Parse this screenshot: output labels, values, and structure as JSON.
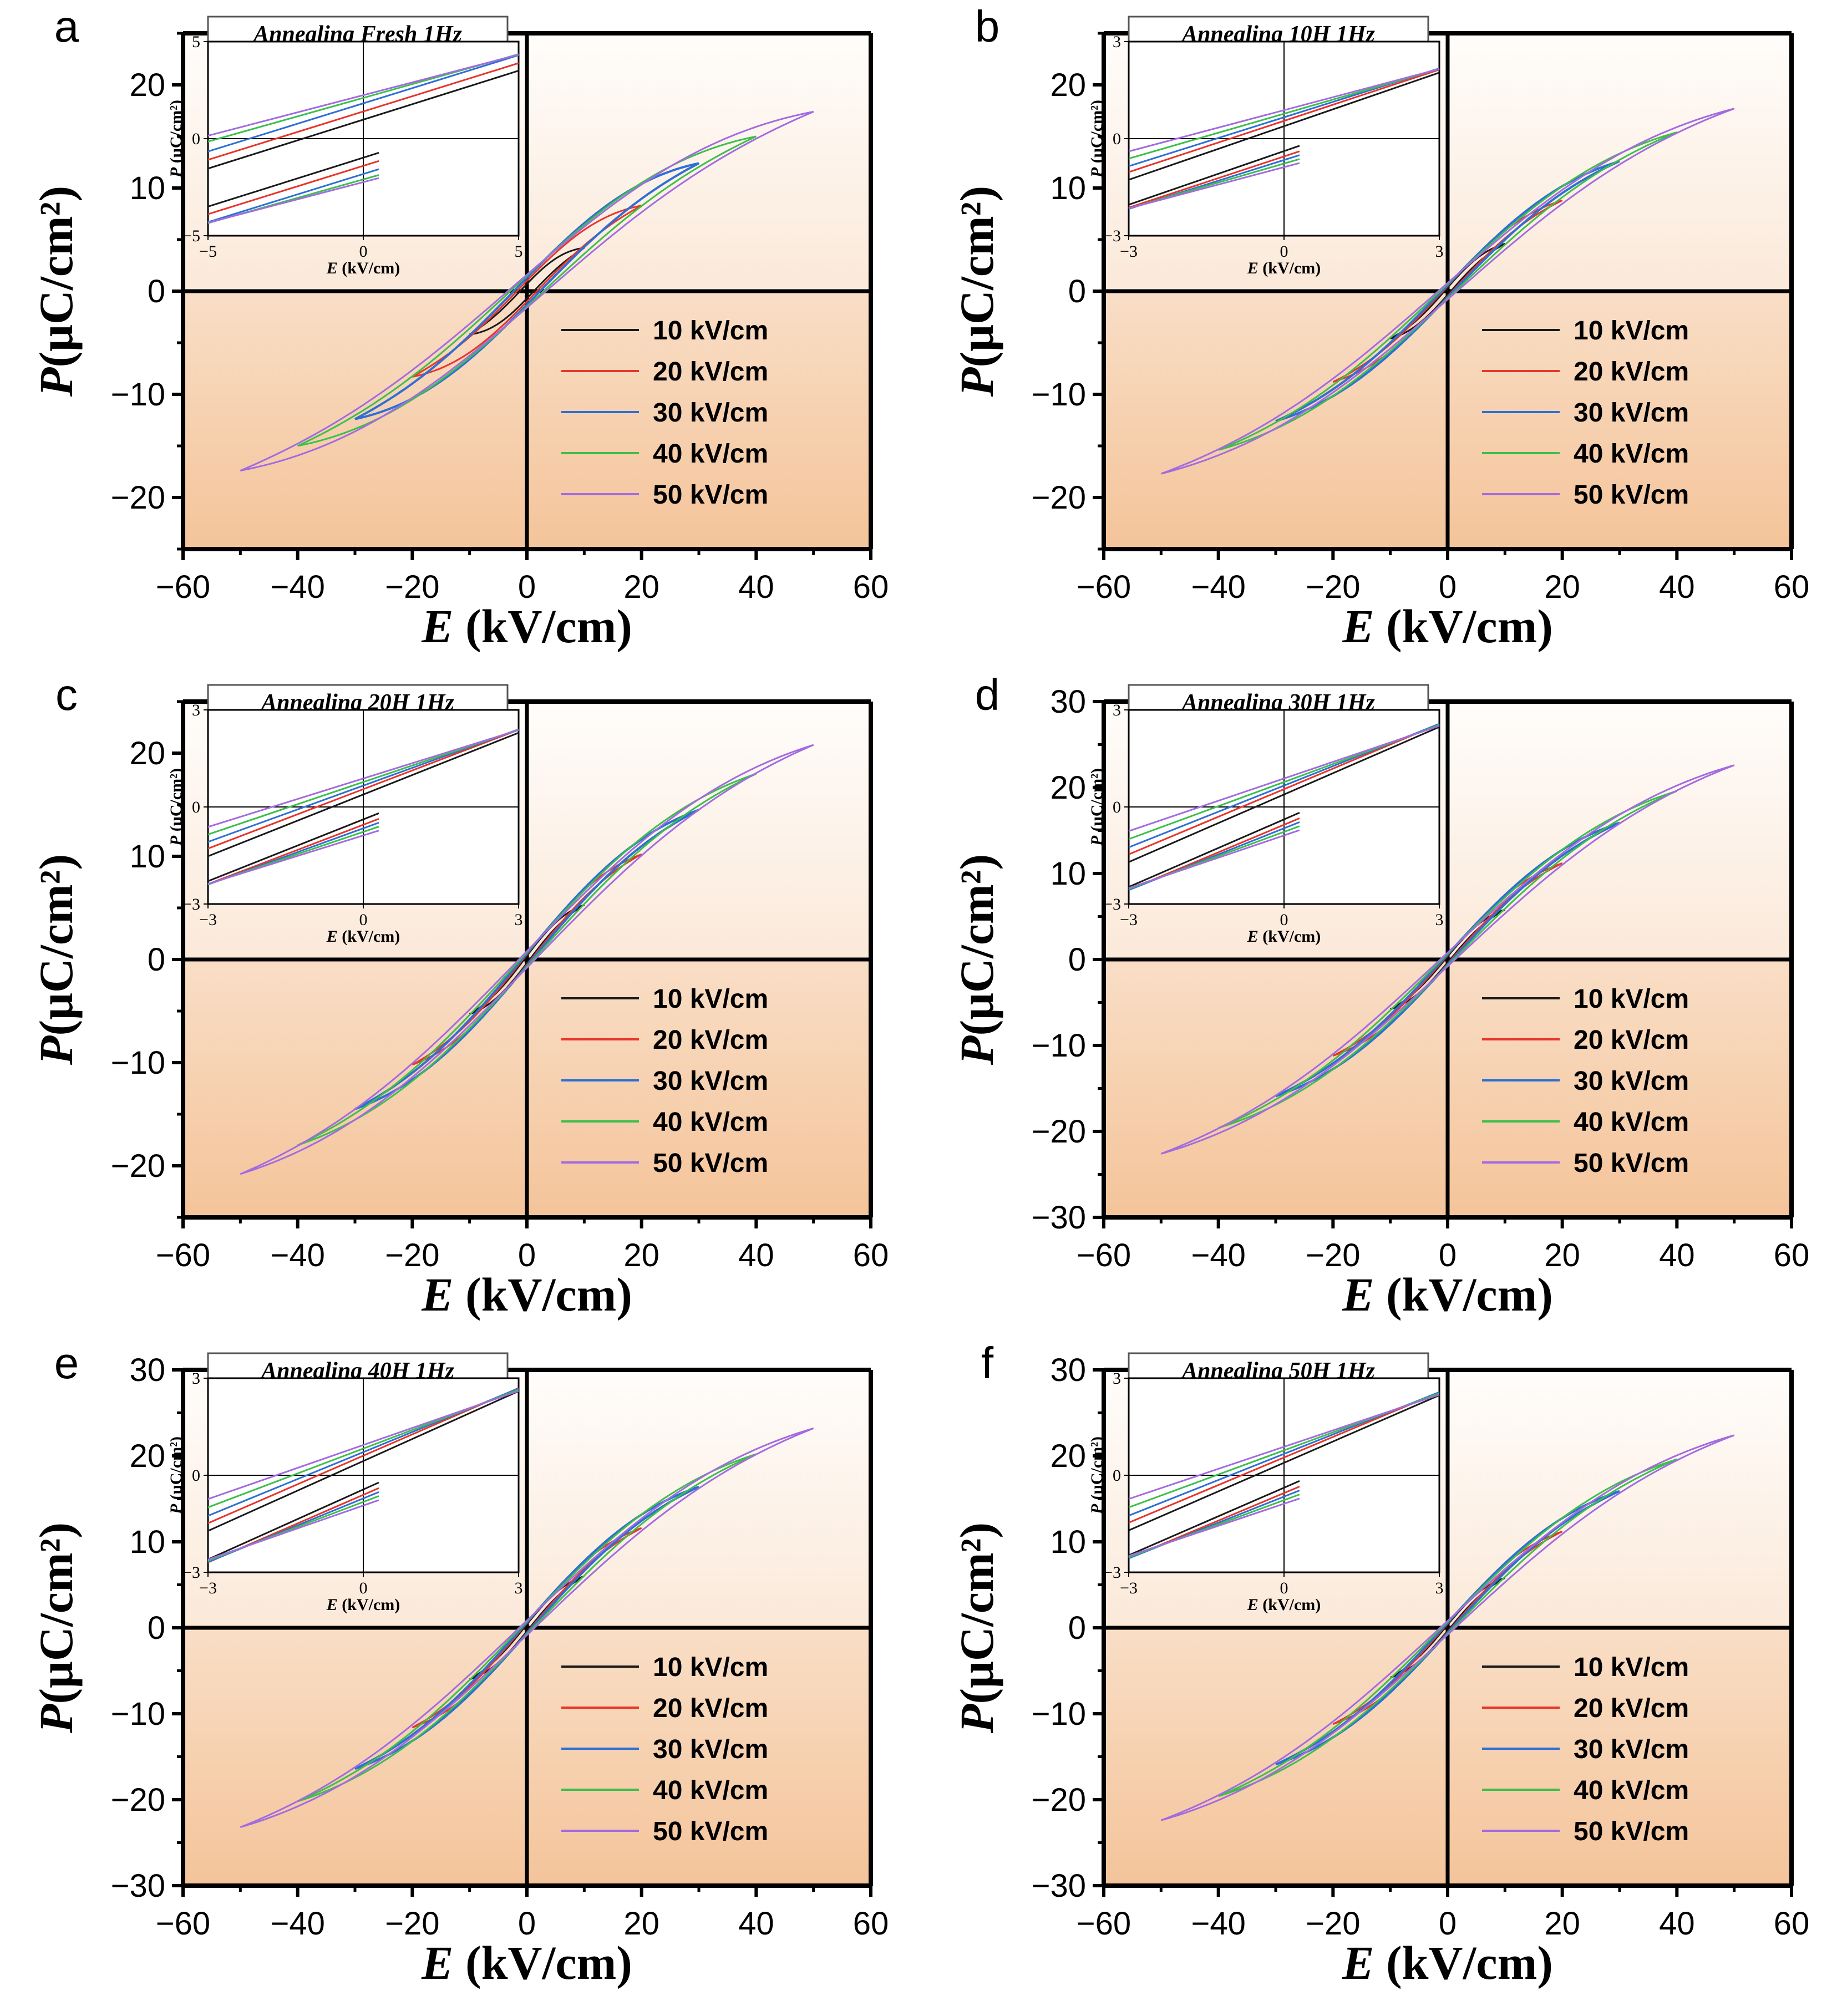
{
  "figure": {
    "legend_placement": "bottom-right",
    "inset_placement": "top-left"
  },
  "colors": {
    "10 kV/cm": "#1a1a1a",
    "20 kV/cm": "#e8352a",
    "30 kV/cm": "#2e6fd6",
    "40 kV/cm": "#3cbf4a",
    "50 kV/cm": "#a36be0",
    "bg_top": "#fffdfb",
    "bg_bottom": "#f4c49a"
  },
  "chart_data": [
    {
      "type": "line",
      "panel_label": "a",
      "title": "Annealing Fresh 1Hz",
      "xlabel_var": "E",
      "xlabel_unit": " (kV/cm)",
      "ylabel_var": "P",
      "ylabel_unit": "(μC/cm²)",
      "xlim": [
        -60,
        60
      ],
      "ylim": [
        -25,
        25
      ],
      "xticks": [
        "−60",
        "−40",
        "−20",
        "0",
        "20",
        "40",
        "60"
      ],
      "yticks": [
        "−20",
        "−10",
        "0",
        "10",
        "20"
      ],
      "series": [
        {
          "name": "10 kV/cm",
          "emax": 10,
          "pmax": 4.2,
          "pr": 0.7
        },
        {
          "name": "20 kV/cm",
          "emax": 20,
          "pmax": 8.3,
          "pr": 1.0
        },
        {
          "name": "30 kV/cm",
          "emax": 30,
          "pmax": 12.4,
          "pr": 1.3
        },
        {
          "name": "40 kV/cm",
          "emax": 40,
          "pmax": 15.0,
          "pr": 1.5
        },
        {
          "name": "50 kV/cm",
          "emax": 50,
          "pmax": 17.4,
          "pr": 1.6
        }
      ],
      "inset": {
        "xlabel_var": "E",
        "xlabel_unit": " (kV/cm)",
        "ylabel_var": "P",
        "ylabel_unit": " (μC/cm²)",
        "xlim": [
          -5,
          5
        ],
        "ylim": [
          -5,
          5
        ],
        "xticks": [
          "−5",
          "0",
          "5"
        ],
        "yticks": [
          "−5",
          "0",
          "5"
        ]
      }
    },
    {
      "type": "line",
      "panel_label": "b",
      "title": "Annealing 10H 1Hz",
      "xlabel_var": "E",
      "xlabel_unit": " (kV/cm)",
      "ylabel_var": "P",
      "ylabel_unit": "(μC/cm²)",
      "xlim": [
        -60,
        60
      ],
      "ylim": [
        -25,
        25
      ],
      "xticks": [
        "−60",
        "−40",
        "−20",
        "0",
        "20",
        "40",
        "60"
      ],
      "yticks": [
        "−20",
        "−10",
        "0",
        "10",
        "20"
      ],
      "series": [
        {
          "name": "10 kV/cm",
          "emax": 10,
          "pmax": 4.6,
          "pr": 0.35
        },
        {
          "name": "20 kV/cm",
          "emax": 20,
          "pmax": 8.8,
          "pr": 0.5
        },
        {
          "name": "30 kV/cm",
          "emax": 30,
          "pmax": 12.6,
          "pr": 0.6
        },
        {
          "name": "40 kV/cm",
          "emax": 40,
          "pmax": 15.4,
          "pr": 0.7
        },
        {
          "name": "50 kV/cm",
          "emax": 50,
          "pmax": 17.7,
          "pr": 0.8
        }
      ],
      "inset": {
        "xlabel_var": "E",
        "xlabel_unit": " (kV/cm)",
        "ylabel_var": "P",
        "ylabel_unit": " (μC/cm²)",
        "xlim": [
          -3,
          3
        ],
        "ylim": [
          -3,
          3
        ],
        "xticks": [
          "−3",
          "0",
          "3"
        ],
        "yticks": [
          "−3",
          "0",
          "3"
        ]
      }
    },
    {
      "type": "line",
      "panel_label": "c",
      "title": "Annealing 20H 1Hz",
      "xlabel_var": "E",
      "xlabel_unit": " (kV/cm)",
      "ylabel_var": "P",
      "ylabel_unit": "(μC/cm²)",
      "xlim": [
        -60,
        60
      ],
      "ylim": [
        -25,
        25
      ],
      "xticks": [
        "−60",
        "−40",
        "−20",
        "0",
        "20",
        "40",
        "60"
      ],
      "yticks": [
        "−20",
        "−10",
        "0",
        "10",
        "20"
      ],
      "series": [
        {
          "name": "10 kV/cm",
          "emax": 10,
          "pmax": 5.3,
          "pr": 0.35
        },
        {
          "name": "20 kV/cm",
          "emax": 20,
          "pmax": 10.2,
          "pr": 0.5
        },
        {
          "name": "30 kV/cm",
          "emax": 30,
          "pmax": 14.5,
          "pr": 0.6
        },
        {
          "name": "40 kV/cm",
          "emax": 40,
          "pmax": 18.0,
          "pr": 0.7
        },
        {
          "name": "50 kV/cm",
          "emax": 50,
          "pmax": 20.8,
          "pr": 0.8
        }
      ],
      "inset": {
        "xlabel_var": "E",
        "xlabel_unit": " (kV/cm)",
        "ylabel_var": "P",
        "ylabel_unit": " (μC/cm²)",
        "xlim": [
          -3,
          3
        ],
        "ylim": [
          -3,
          3
        ],
        "xticks": [
          "−3",
          "0",
          "3"
        ],
        "yticks": [
          "−3",
          "0",
          "3"
        ]
      }
    },
    {
      "type": "line",
      "panel_label": "d",
      "title": "Annealing 30H 1Hz",
      "xlabel_var": "E",
      "xlabel_unit": " (kV/cm)",
      "ylabel_var": "P",
      "ylabel_unit": "(μC/cm²)",
      "xlim": [
        -60,
        60
      ],
      "ylim": [
        -30,
        30
      ],
      "xticks": [
        "−60",
        "−40",
        "−20",
        "0",
        "20",
        "40",
        "60"
      ],
      "yticks": [
        "−30",
        "−20",
        "−10",
        "0",
        "10",
        "20",
        "30"
      ],
      "series": [
        {
          "name": "10 kV/cm",
          "emax": 10,
          "pmax": 5.8,
          "pr": 0.35
        },
        {
          "name": "20 kV/cm",
          "emax": 20,
          "pmax": 11.2,
          "pr": 0.5
        },
        {
          "name": "30 kV/cm",
          "emax": 30,
          "pmax": 15.9,
          "pr": 0.6
        },
        {
          "name": "40 kV/cm",
          "emax": 40,
          "pmax": 19.6,
          "pr": 0.7
        },
        {
          "name": "50 kV/cm",
          "emax": 50,
          "pmax": 22.6,
          "pr": 0.8
        }
      ],
      "inset": {
        "xlabel_var": "E",
        "xlabel_unit": " (kV/cm)",
        "ylabel_var": "P",
        "ylabel_unit": " (μC/cm²)",
        "xlim": [
          -3,
          3
        ],
        "ylim": [
          -3,
          3
        ],
        "xticks": [
          "−3",
          "0",
          "3"
        ],
        "yticks": [
          "−3",
          "0",
          "3"
        ]
      }
    },
    {
      "type": "line",
      "panel_label": "e",
      "title": "Annealing 40H 1Hz",
      "xlabel_var": "E",
      "xlabel_unit": " (kV/cm)",
      "ylabel_var": "P",
      "ylabel_unit": "(μC/cm²)",
      "xlim": [
        -60,
        60
      ],
      "ylim": [
        -30,
        30
      ],
      "xticks": [
        "−60",
        "−40",
        "−20",
        "0",
        "20",
        "40",
        "60"
      ],
      "yticks": [
        "−30",
        "−20",
        "−10",
        "0",
        "10",
        "20",
        "30"
      ],
      "series": [
        {
          "name": "10 kV/cm",
          "emax": 10,
          "pmax": 6.0,
          "pr": 0.4
        },
        {
          "name": "20 kV/cm",
          "emax": 20,
          "pmax": 11.6,
          "pr": 0.55
        },
        {
          "name": "30 kV/cm",
          "emax": 30,
          "pmax": 16.4,
          "pr": 0.65
        },
        {
          "name": "40 kV/cm",
          "emax": 40,
          "pmax": 20.2,
          "pr": 0.75
        },
        {
          "name": "50 kV/cm",
          "emax": 50,
          "pmax": 23.2,
          "pr": 0.85
        }
      ],
      "inset": {
        "xlabel_var": "E",
        "xlabel_unit": " (kV/cm)",
        "ylabel_var": "P",
        "ylabel_unit": " (μC/cm²)",
        "xlim": [
          -3,
          3
        ],
        "ylim": [
          -3,
          3
        ],
        "xticks": [
          "−3",
          "0",
          "3"
        ],
        "yticks": [
          "−3",
          "0",
          "3"
        ]
      }
    },
    {
      "type": "line",
      "panel_label": "f",
      "title": "Annealing 50H 1Hz",
      "xlabel_var": "E",
      "xlabel_unit": " (kV/cm)",
      "ylabel_var": "P",
      "ylabel_unit": "(μC/cm²)",
      "xlim": [
        -60,
        60
      ],
      "ylim": [
        -30,
        30
      ],
      "xticks": [
        "−60",
        "−40",
        "−20",
        "0",
        "20",
        "40",
        "60"
      ],
      "yticks": [
        "−30",
        "−20",
        "−10",
        "0",
        "10",
        "20",
        "30"
      ],
      "series": [
        {
          "name": "10 kV/cm",
          "emax": 10,
          "pmax": 5.8,
          "pr": 0.35
        },
        {
          "name": "20 kV/cm",
          "emax": 20,
          "pmax": 11.2,
          "pr": 0.5
        },
        {
          "name": "30 kV/cm",
          "emax": 30,
          "pmax": 15.9,
          "pr": 0.6
        },
        {
          "name": "40 kV/cm",
          "emax": 40,
          "pmax": 19.6,
          "pr": 0.7
        },
        {
          "name": "50 kV/cm",
          "emax": 50,
          "pmax": 22.4,
          "pr": 0.8
        }
      ],
      "inset": {
        "xlabel_var": "E",
        "xlabel_unit": " (kV/cm)",
        "ylabel_var": "P",
        "ylabel_unit": " (μC/cm²)",
        "xlim": [
          -3,
          3
        ],
        "ylim": [
          -3,
          3
        ],
        "xticks": [
          "−3",
          "0",
          "3"
        ],
        "yticks": [
          "−3",
          "0",
          "3"
        ]
      }
    }
  ]
}
